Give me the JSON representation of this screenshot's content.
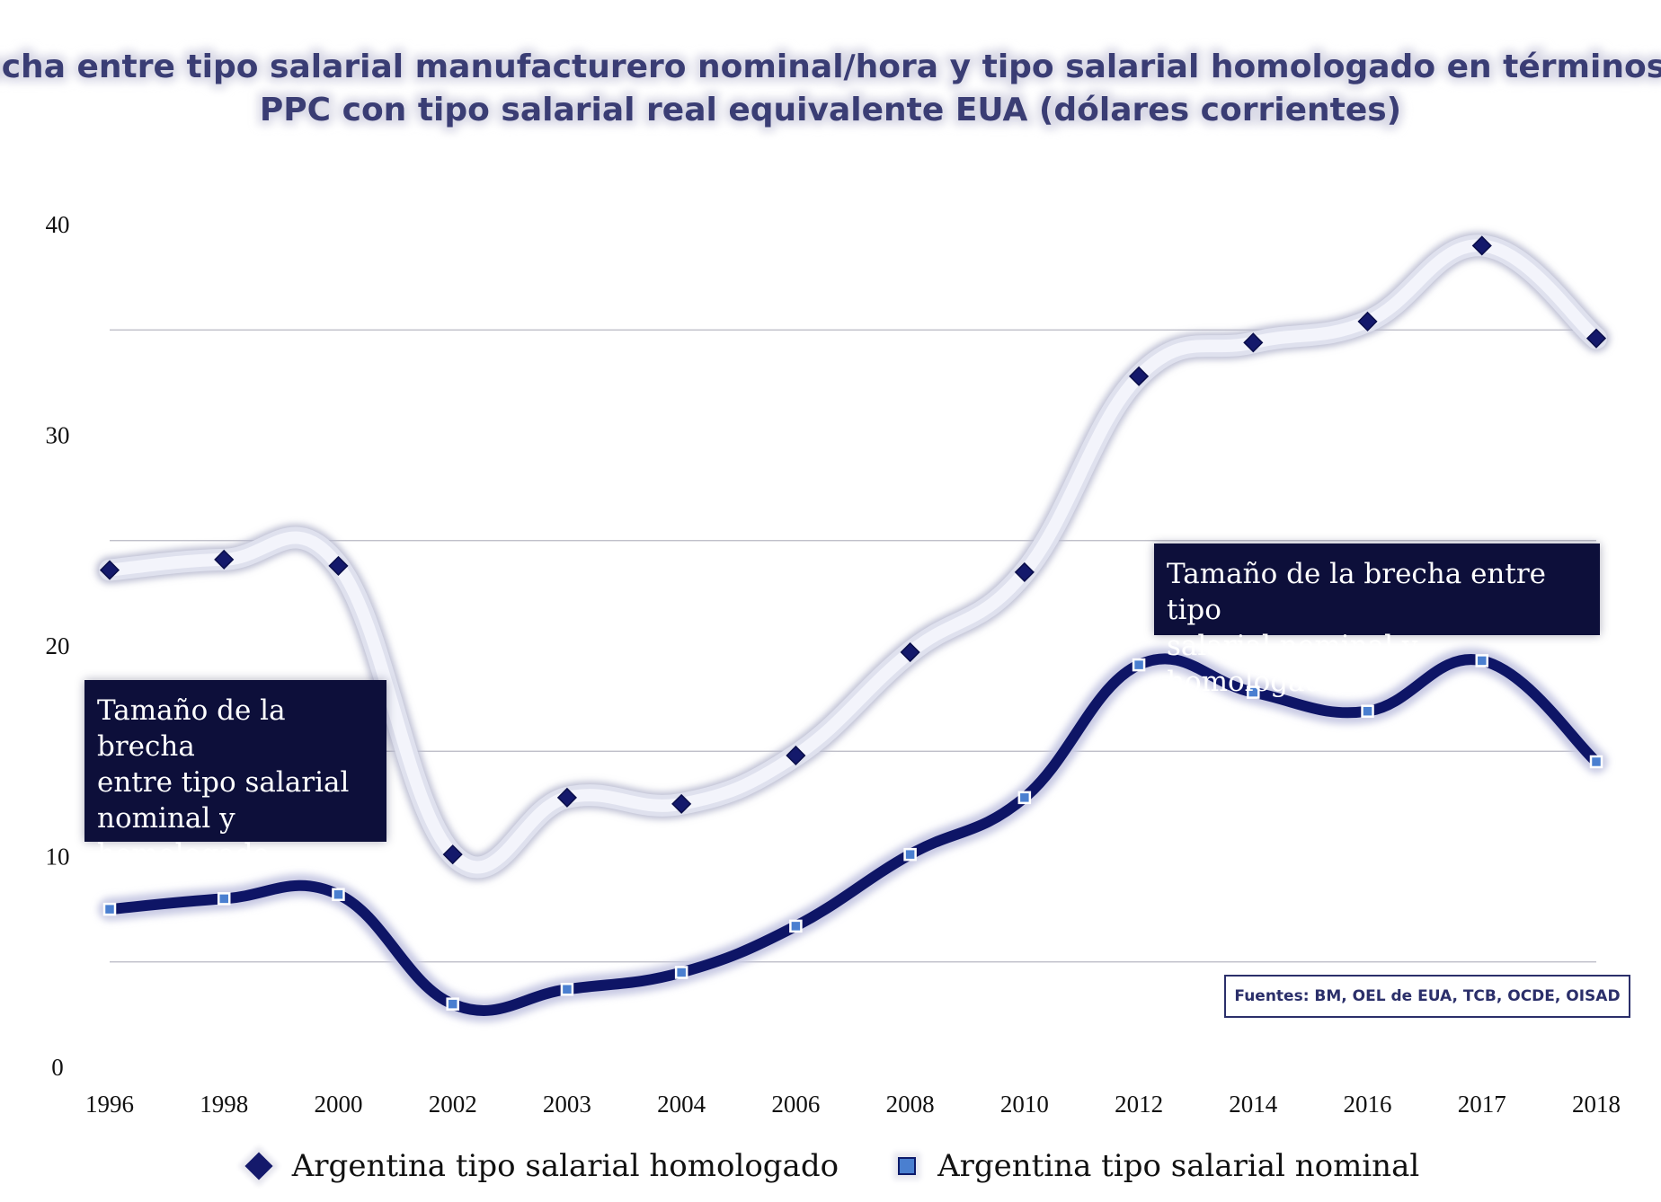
{
  "title": {
    "line1": "Brecha entre tipo salarial manufacturero nominal/hora y tipo salarial homologado en términos de",
    "line2": "PPC con tipo salarial real equivalente EUA (dólares corrientes)"
  },
  "annotations": {
    "left": [
      "Tamaño de la brecha",
      "entre tipo salarial",
      "nominal y",
      "homologado"
    ],
    "right": [
      "Tamaño de la brecha entre tipo",
      "salarial nominal y homologado"
    ]
  },
  "source": "Fuentes: BM, OEL de EUA, TCB, OCDE, OISAD",
  "legend": {
    "homologado": "Argentina tipo salarial homologado",
    "nominal": "Argentina tipo salarial nominal"
  },
  "colors": {
    "homologado_line": "#0e1566",
    "homologado_halo": "#f3f4fb",
    "nominal_line": "#0e1566",
    "nominal_marker": "#4a7fd0",
    "title": "#3a3d74"
  },
  "chart_data": {
    "type": "line",
    "title": "Brecha entre tipo salarial manufacturero nominal/hora y tipo salarial homologado en términos de PPC con tipo salarial real equivalente EUA (dólares corrientes)",
    "xlabel": "",
    "ylabel": "",
    "categories": [
      "1996",
      "1998",
      "2000",
      "2002",
      "2003",
      "2004",
      "2006",
      "2008",
      "2010",
      "2012",
      "2014",
      "2016",
      "2017",
      "2018"
    ],
    "yticks": [
      "0",
      "10",
      "20",
      "30",
      "40"
    ],
    "ylim": [
      0,
      40
    ],
    "series": [
      {
        "name": "Argentina tipo salarial homologado",
        "marker": "diamond",
        "values": [
          23.6,
          24.1,
          23.8,
          10.1,
          12.8,
          12.5,
          14.8,
          19.7,
          23.5,
          32.8,
          34.4,
          35.4,
          39.0,
          34.6
        ]
      },
      {
        "name": "Argentina tipo salarial nominal",
        "marker": "square",
        "values": [
          7.5,
          8.0,
          8.2,
          3.0,
          3.7,
          4.5,
          6.7,
          10.1,
          12.8,
          19.1,
          17.8,
          16.9,
          19.3,
          14.5
        ]
      }
    ]
  }
}
